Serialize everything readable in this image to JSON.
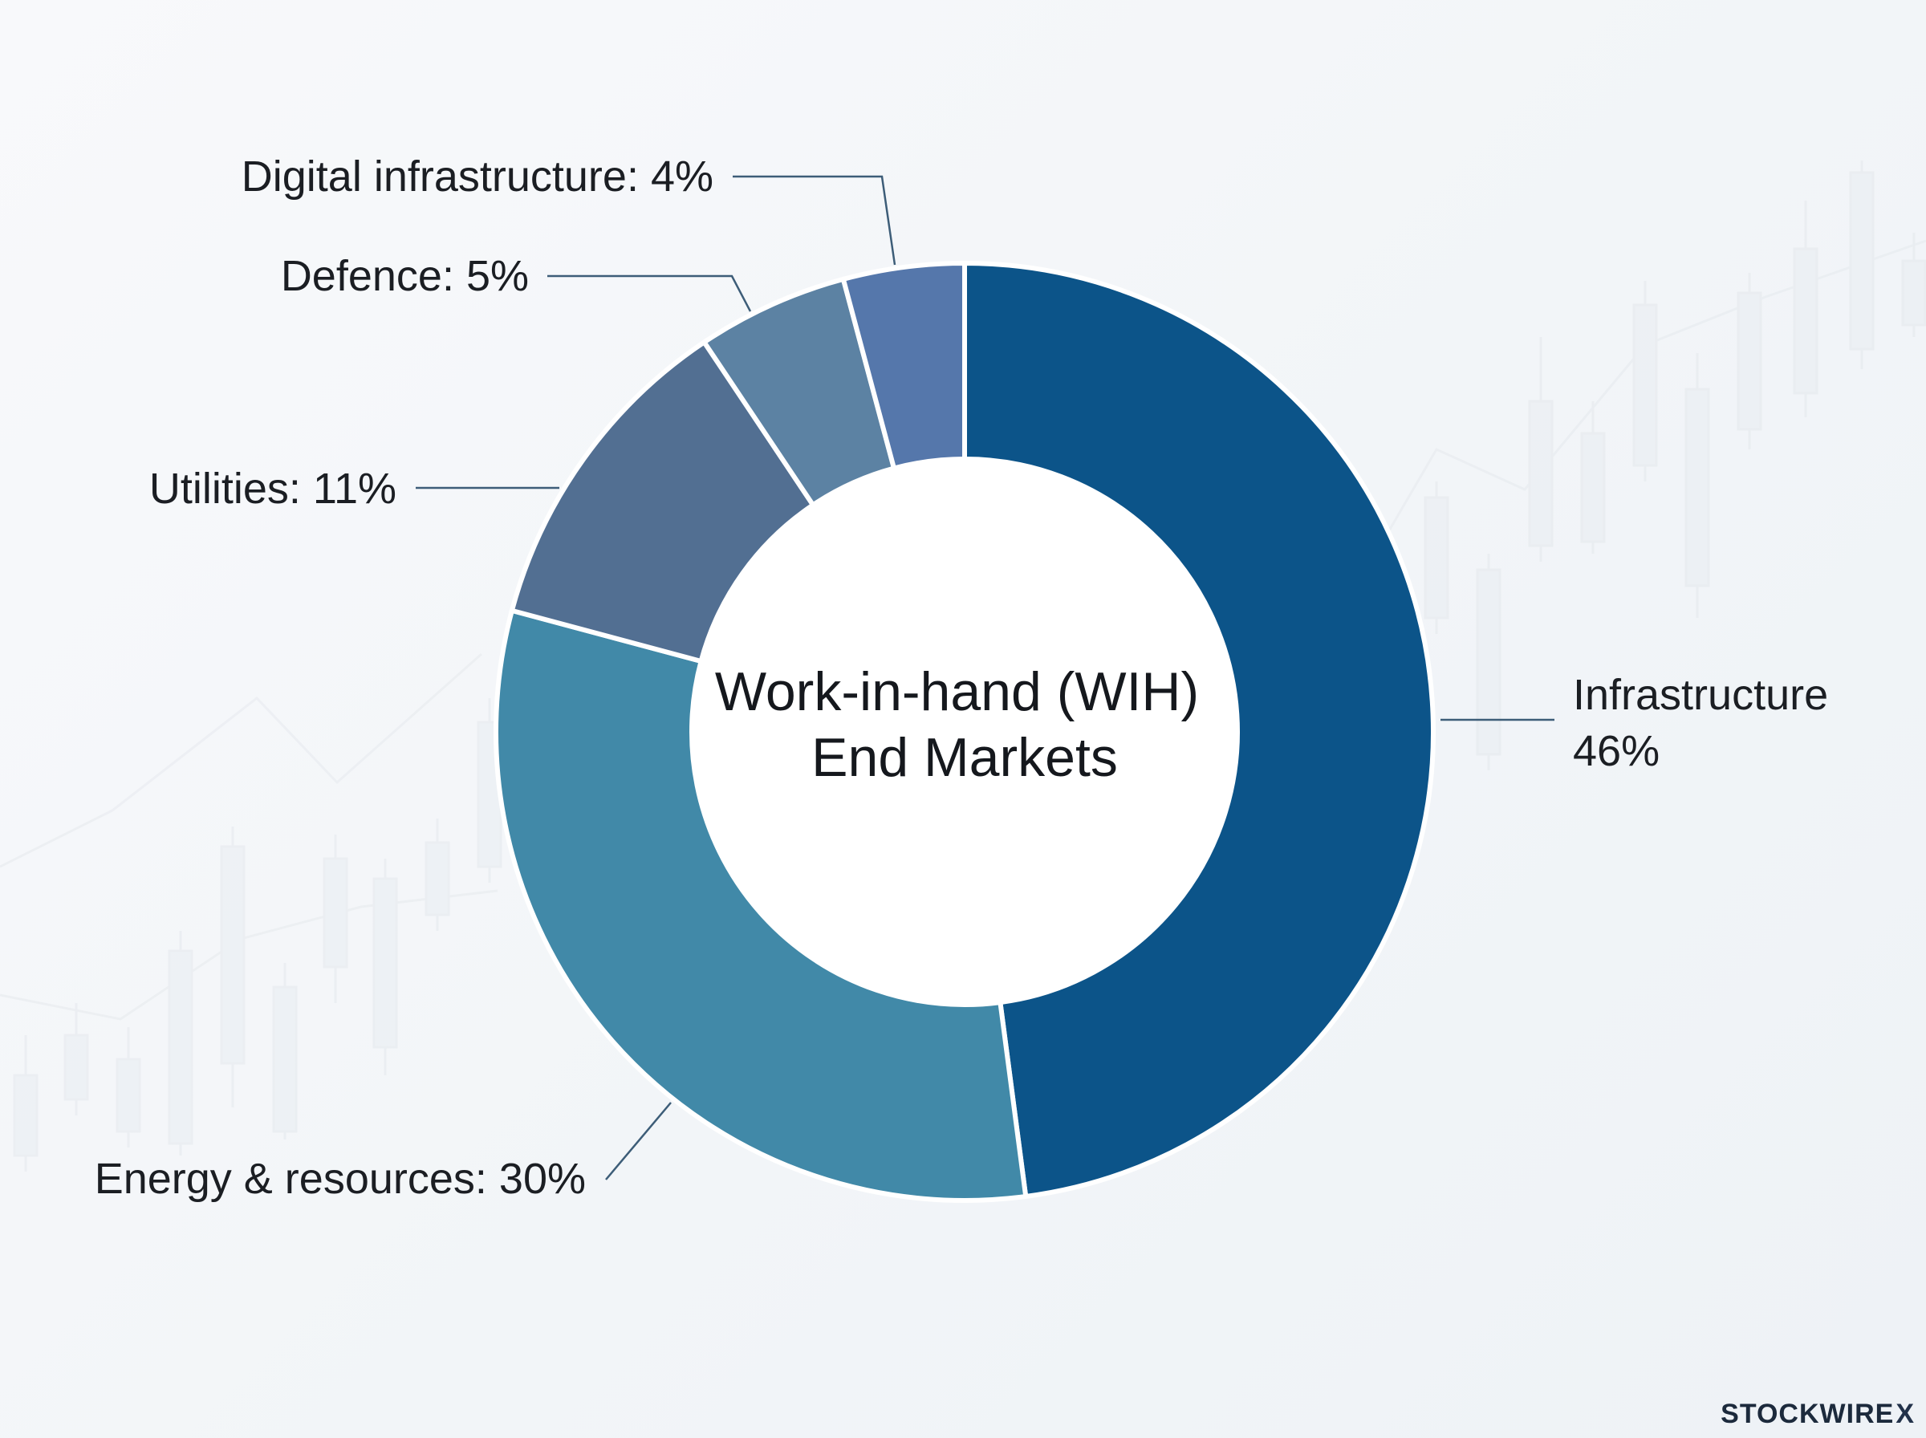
{
  "chart_data": {
    "type": "pie",
    "variant": "donut",
    "center_title": [
      "Work-in-hand (WIH)",
      "End Markets"
    ],
    "slices": [
      {
        "name": "Infrastructure",
        "value": 46,
        "label_lines": [
          "Infrastructure",
          "46%"
        ],
        "color": "#0c5489"
      },
      {
        "name": "Energy & resources",
        "value": 30,
        "label_lines": [
          "Energy & resources: 30%"
        ],
        "color": "#4189a8"
      },
      {
        "name": "Utilities",
        "value": 11,
        "label_lines": [
          "Utilities: 11%"
        ],
        "color": "#526f92"
      },
      {
        "name": "Defence",
        "value": 5,
        "label_lines": [
          "Defence: 5%"
        ],
        "color": "#5c82a3"
      },
      {
        "name": "Digital infrastructure",
        "value": 4,
        "label_lines": [
          "Digital infrastructure: 4%"
        ],
        "color": "#5577ab"
      }
    ],
    "legend": "none"
  },
  "brand": {
    "name": "STOCKWIRE",
    "mark": "X"
  }
}
